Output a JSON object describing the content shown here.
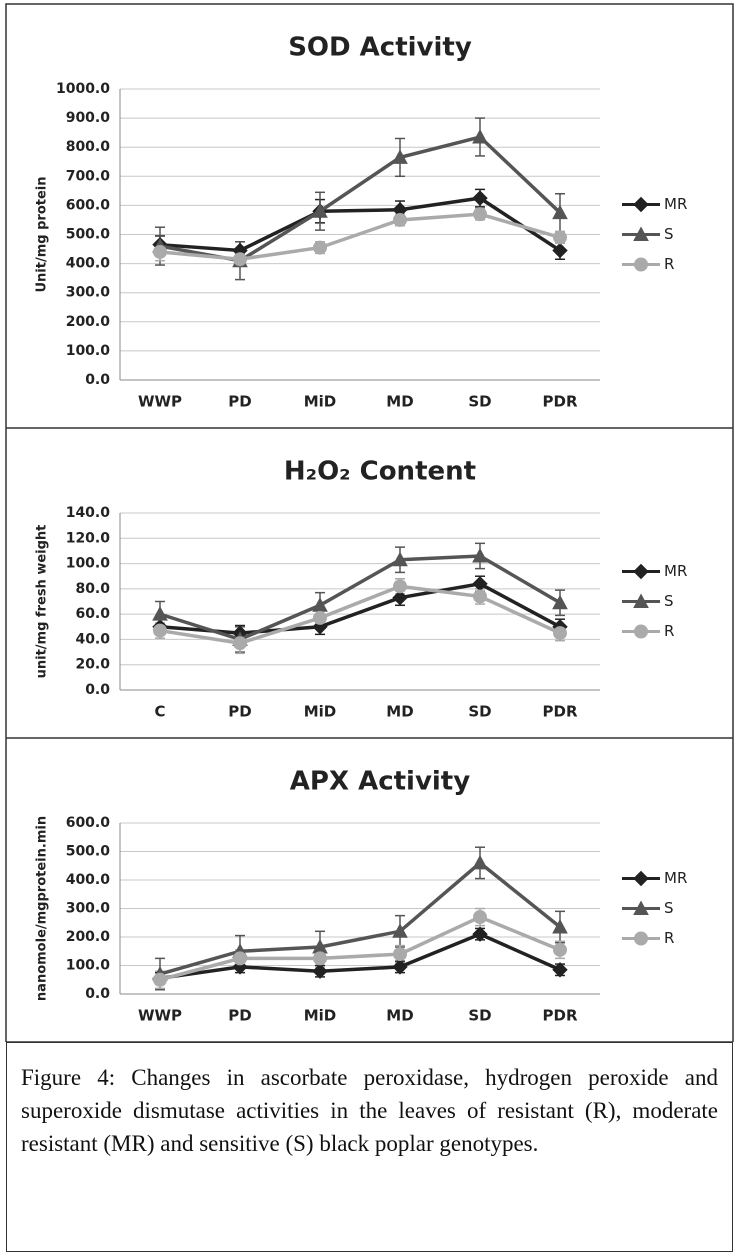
{
  "chart_data": [
    {
      "type": "line",
      "title": "SOD Activity",
      "y_label": "Unit/mg protein",
      "categories": [
        "WWP",
        "PD",
        "MiD",
        "MD",
        "SD",
        "PDR"
      ],
      "ylim": [
        0,
        1000
      ],
      "yticks": [
        {
          "value": 0,
          "label": "0.0"
        },
        {
          "value": 100,
          "label": "100.0"
        },
        {
          "value": 200,
          "label": "200.0"
        },
        {
          "value": 300,
          "label": "300.0"
        },
        {
          "value": 400,
          "label": "400.0"
        },
        {
          "value": 500,
          "label": "500.0"
        },
        {
          "value": 600,
          "label": "600.0"
        },
        {
          "value": 700,
          "label": "700.0"
        },
        {
          "value": 800,
          "label": "800.0"
        },
        {
          "value": 900,
          "label": "900.0"
        },
        {
          "value": 1000,
          "label": "1000.0"
        }
      ],
      "grid": true,
      "series": [
        {
          "name": "MR",
          "color": "#222222",
          "marker": "diamond",
          "values": [
            465,
            445,
            580,
            585,
            625,
            445
          ],
          "errors": [
            30,
            30,
            40,
            30,
            30,
            30
          ]
        },
        {
          "name": "S",
          "color": "#555555",
          "marker": "triangle",
          "values": [
            460,
            410,
            580,
            765,
            835,
            575
          ],
          "errors": [
            65,
            65,
            65,
            65,
            65,
            65
          ]
        },
        {
          "name": "R",
          "color": "#aaaaaa",
          "marker": "circle",
          "values": [
            440,
            415,
            455,
            550,
            570,
            490
          ],
          "errors": [
            30,
            20,
            20,
            20,
            20,
            20
          ]
        }
      ]
    },
    {
      "type": "line",
      "title": "H₂O₂ Content",
      "y_label": "unit/mg fresh weight",
      "categories": [
        "C",
        "PD",
        "MiD",
        "MD",
        "SD",
        "PDR"
      ],
      "ylim": [
        0,
        140
      ],
      "yticks": [
        {
          "value": 0,
          "label": "0.0"
        },
        {
          "value": 20,
          "label": "20.0"
        },
        {
          "value": 40,
          "label": "40.0"
        },
        {
          "value": 60,
          "label": "60.0"
        },
        {
          "value": 80,
          "label": "80.0"
        },
        {
          "value": 100,
          "label": "100.0"
        },
        {
          "value": 120,
          "label": "120.0"
        },
        {
          "value": 140,
          "label": "140.0"
        }
      ],
      "grid": true,
      "series": [
        {
          "name": "MR",
          "color": "#222222",
          "marker": "diamond",
          "values": [
            50,
            45,
            50,
            73,
            84,
            50
          ],
          "errors": [
            6,
            6,
            6,
            6,
            6,
            6
          ]
        },
        {
          "name": "S",
          "color": "#555555",
          "marker": "triangle",
          "values": [
            60,
            40,
            67,
            103,
            106,
            69
          ],
          "errors": [
            10,
            10,
            10,
            10,
            10,
            10
          ]
        },
        {
          "name": "R",
          "color": "#aaaaaa",
          "marker": "circle",
          "values": [
            47,
            37,
            57,
            82,
            74,
            45
          ],
          "errors": [
            6,
            8,
            6,
            6,
            6,
            6
          ]
        }
      ]
    },
    {
      "type": "line",
      "title": "APX Activity",
      "y_label": "nanomole/mgprotein.min",
      "categories": [
        "WWP",
        "PD",
        "MiD",
        "MD",
        "SD",
        "PDR"
      ],
      "ylim": [
        0,
        600
      ],
      "yticks": [
        {
          "value": 0,
          "label": "0.0"
        },
        {
          "value": 100,
          "label": "100.0"
        },
        {
          "value": 200,
          "label": "200.0"
        },
        {
          "value": 300,
          "label": "300.0"
        },
        {
          "value": 400,
          "label": "400.0"
        },
        {
          "value": 500,
          "label": "500.0"
        },
        {
          "value": 600,
          "label": "600.0"
        }
      ],
      "grid": true,
      "series": [
        {
          "name": "MR",
          "color": "#222222",
          "marker": "diamond",
          "values": [
            55,
            95,
            80,
            95,
            210,
            85
          ],
          "errors": [
            20,
            20,
            20,
            20,
            20,
            20
          ]
        },
        {
          "name": "S",
          "color": "#555555",
          "marker": "triangle",
          "values": [
            70,
            150,
            165,
            220,
            460,
            235
          ],
          "errors": [
            55,
            55,
            55,
            55,
            55,
            55
          ]
        },
        {
          "name": "R",
          "color": "#aaaaaa",
          "marker": "circle",
          "values": [
            50,
            125,
            125,
            140,
            270,
            155
          ],
          "errors": [
            30,
            30,
            30,
            30,
            30,
            30
          ]
        }
      ]
    }
  ],
  "caption": "Figure 4: Changes in ascorbate peroxidase, hydrogen peroxide and superoxide dismutase activities in the leaves of resistant (R), moderate resistant (MR) and sensitive (S) black poplar genotypes."
}
